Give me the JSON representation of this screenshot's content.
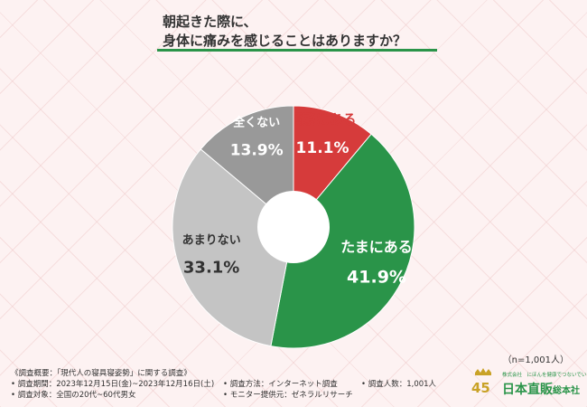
{
  "title": {
    "line1": "朝起きた際に、",
    "line2": "身体に痛みを感じることはありますか？"
  },
  "chart_data": {
    "type": "pie",
    "title": "朝起きた際に、身体に痛みを感じることはありますか？",
    "slices": [
      {
        "label": "頻繁にある",
        "value": 11.1,
        "display": "11.1%",
        "color": "#d63b3b",
        "label_color": "#d63b3b",
        "value_color": "#ffffff"
      },
      {
        "label": "たまにある",
        "value": 41.9,
        "display": "41.9%",
        "color": "#2a9449",
        "label_color": "#ffffff",
        "value_color": "#ffffff"
      },
      {
        "label": "あまりない",
        "value": 33.1,
        "display": "33.1%",
        "color": "#c4c4c4",
        "label_color": "#333333",
        "value_color": "#333333"
      },
      {
        "label": "全くない",
        "value": 13.9,
        "display": "13.9%",
        "color": "#999999",
        "label_color": "#ffffff",
        "value_color": "#ffffff"
      }
    ],
    "sample_size": "（n=1,001人）"
  },
  "footer": {
    "overview": "《調査概要：「現代人の寝具寝姿勢」に関する調査》",
    "period": "• 調査期間：2023年12月15日(金)~2023年12月16日(土)",
    "target": "• 調査対象：全国の20代~60代男女",
    "method": "• 調査方法：インターネット調査",
    "provider": "• モニター提供元：ゼネラルリサーチ",
    "count": "• 調査人数：1,001人"
  },
  "logo": {
    "emblem_text": "45th",
    "tagline": "株式会社　にほんを健康でつないでいく",
    "name": "日本直販",
    "suffix": "総本社"
  }
}
